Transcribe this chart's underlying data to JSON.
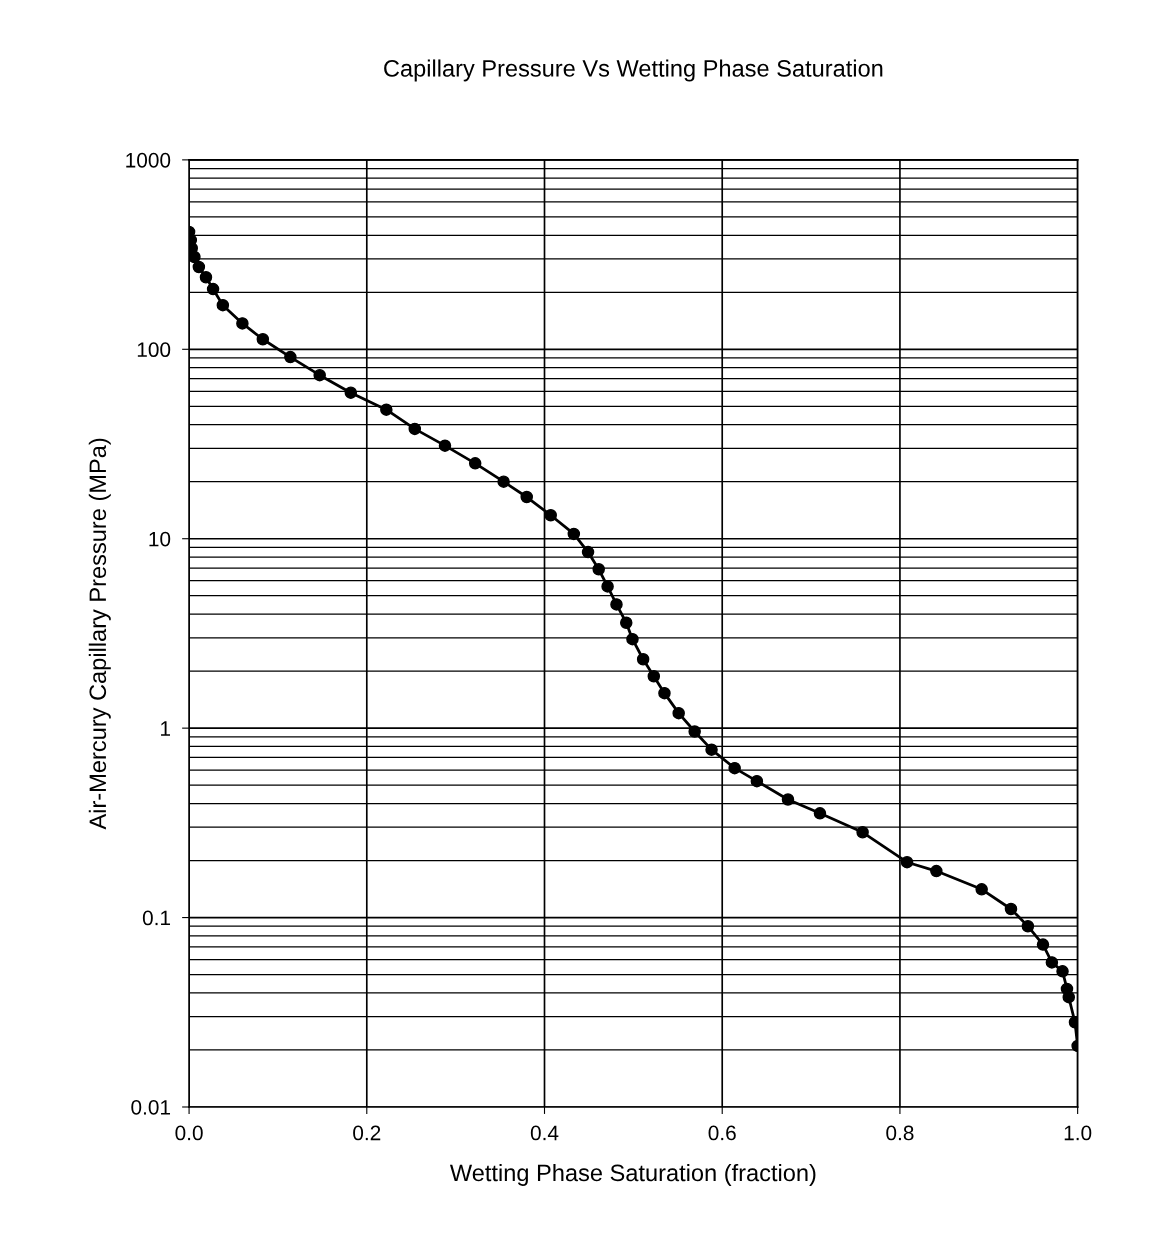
{
  "chart_data": {
    "type": "line",
    "title": "Capillary Pressure Vs Wetting Phase Saturation",
    "xlabel": "Wetting Phase Saturation (fraction)",
    "ylabel": "Air-Mercury Capillary Pressure (MPa)",
    "log": "y",
    "grid": true,
    "marker": "circle",
    "line_style": "solid",
    "xlim": [
      0,
      1
    ],
    "xticks": [
      {
        "value": 0,
        "label": "0.0"
      },
      0.2,
      0.4,
      0.6,
      0.8,
      {
        "value": 1,
        "label": "1.0"
      }
    ],
    "ylim": [
      0.01,
      1000
    ],
    "yticks": [
      0.01,
      0.1,
      1,
      10,
      100,
      1000
    ],
    "series": [
      {
        "color": "#000000",
        "x": [
          0.0,
          0.002,
          0.003,
          0.006,
          0.011,
          0.019,
          0.027,
          0.038,
          0.06,
          0.083,
          0.114,
          0.147,
          0.182,
          0.222,
          0.254,
          0.288,
          0.322,
          0.354,
          0.38,
          0.407,
          0.433,
          0.449,
          0.461,
          0.471,
          0.481,
          0.492,
          0.499,
          0.511,
          0.523,
          0.535,
          0.551,
          0.569,
          0.588,
          0.614,
          0.639,
          0.674,
          0.71,
          0.758,
          0.808,
          0.841,
          0.892,
          0.925,
          0.944,
          0.961,
          0.971,
          0.983,
          0.988,
          0.99,
          0.997,
          1.0
        ],
        "values": [
          416,
          377,
          342,
          307,
          272,
          240,
          208,
          171,
          137,
          113,
          91,
          73,
          59,
          48,
          38,
          31,
          25,
          20,
          16.6,
          13.3,
          10.6,
          8.5,
          6.9,
          5.6,
          4.5,
          3.6,
          2.95,
          2.31,
          1.88,
          1.53,
          1.2,
          0.96,
          0.77,
          0.615,
          0.525,
          0.42,
          0.355,
          0.282,
          0.196,
          0.176,
          0.141,
          0.111,
          0.09,
          0.072,
          0.058,
          0.052,
          0.042,
          0.038,
          0.028,
          0.021
        ]
      }
    ]
  }
}
